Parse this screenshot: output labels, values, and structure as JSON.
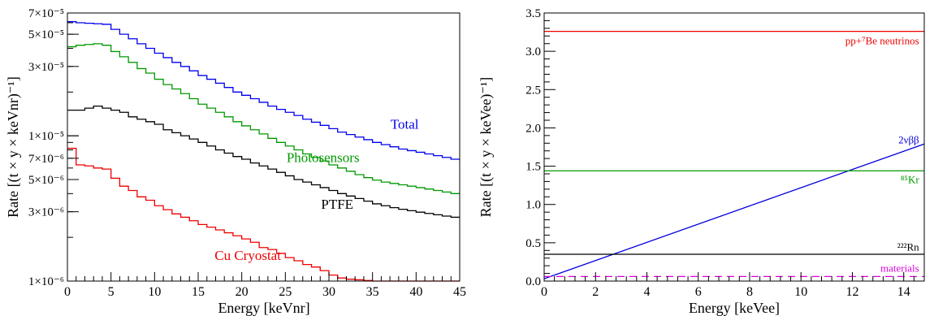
{
  "chart_data": [
    {
      "type": "line",
      "xlabel": "Energy [keVnr]",
      "ylabel": "Rate [(t × y × keVnr)⁻¹]",
      "xlim": [
        0,
        45
      ],
      "ylim": [
        1e-06,
        7e-05
      ],
      "yscale": "log",
      "grid": false,
      "step": true,
      "x_ticks": [
        {
          "value": 0,
          "label": "0"
        },
        {
          "value": 5,
          "label": "5"
        },
        {
          "value": 10,
          "label": "10"
        },
        {
          "value": 15,
          "label": "15"
        },
        {
          "value": 20,
          "label": "20"
        },
        {
          "value": 25,
          "label": "25"
        },
        {
          "value": 30,
          "label": "30"
        },
        {
          "value": 35,
          "label": "35"
        },
        {
          "value": 40,
          "label": "40"
        },
        {
          "value": 45,
          "label": "45"
        }
      ],
      "y_ticks": [
        {
          "value": 1e-06,
          "label": "1×10⁻⁶"
        },
        {
          "value": 3e-06,
          "label": "3×10⁻⁶"
        },
        {
          "value": 5e-06,
          "label": "5×10⁻⁶"
        },
        {
          "value": 7e-06,
          "label": "7×10⁻⁶"
        },
        {
          "value": 1e-05,
          "label": "1×10⁻⁵"
        },
        {
          "value": 3e-05,
          "label": "3×10⁻⁵"
        },
        {
          "value": 5e-05,
          "label": "5×10⁻⁵"
        },
        {
          "value": 7e-05,
          "label": "7×10⁻⁵"
        }
      ],
      "bin_edges": [
        0,
        1,
        2,
        3,
        4,
        5,
        6,
        7,
        8,
        9,
        10,
        11,
        12,
        13,
        14,
        15,
        16,
        17,
        18,
        19,
        20,
        21,
        22,
        23,
        24,
        25,
        26,
        27,
        28,
        29,
        30,
        31,
        32,
        33,
        34,
        35,
        36,
        37,
        38,
        39,
        40,
        41,
        42,
        43,
        44,
        45
      ],
      "series": [
        {
          "name": "Total",
          "color": "#0000ee",
          "label_at": [
            40.3,
            1.12e-05
          ],
          "values": [
            6.1e-05,
            6e-05,
            5.95e-05,
            5.9e-05,
            5.85e-05,
            5.4e-05,
            5e-05,
            4.65e-05,
            4.3e-05,
            4e-05,
            3.7e-05,
            3.45e-05,
            3.2e-05,
            3e-05,
            2.8e-05,
            2.6e-05,
            2.45e-05,
            2.3e-05,
            2.15e-05,
            2e-05,
            1.9e-05,
            1.8e-05,
            1.7e-05,
            1.6e-05,
            1.52e-05,
            1.45e-05,
            1.38e-05,
            1.3e-05,
            1.24e-05,
            1.18e-05,
            1.12e-05,
            1.06e-05,
            1.02e-05,
            9.8e-06,
            9.4e-06,
            9e-06,
            8.7e-06,
            8.4e-06,
            8.1e-06,
            7.9e-06,
            7.7e-06,
            7.5e-06,
            7.3e-06,
            7.1e-06,
            6.9e-06
          ]
        },
        {
          "name": "Photosensors",
          "color": "#009900",
          "label_at": [
            33.5,
            6.6e-06
          ],
          "values": [
            4.1e-05,
            4.2e-05,
            4.25e-05,
            4.3e-05,
            4.2e-05,
            3.8e-05,
            3.5e-05,
            3.2e-05,
            2.9e-05,
            2.7e-05,
            2.45e-05,
            2.25e-05,
            2.1e-05,
            1.95e-05,
            1.8e-05,
            1.65e-05,
            1.55e-05,
            1.45e-05,
            1.35e-05,
            1.25e-05,
            1.17e-05,
            1.1e-05,
            1.03e-05,
            9.6e-06,
            9e-06,
            8.5e-06,
            8e-06,
            7.5e-06,
            7.1e-06,
            6.7e-06,
            6.3e-06,
            6e-06,
            5.7e-06,
            5.4e-06,
            5.15e-06,
            4.95e-06,
            4.8e-06,
            4.7e-06,
            4.6e-06,
            4.5e-06,
            4.4e-06,
            4.3e-06,
            4.2e-06,
            4.1e-06,
            4e-06
          ]
        },
        {
          "name": "PTFE",
          "color": "#000000",
          "label_at": [
            32.8,
            3.15e-06
          ],
          "values": [
            1.5e-05,
            1.5e-05,
            1.55e-05,
            1.6e-05,
            1.55e-05,
            1.5e-05,
            1.45e-05,
            1.35e-05,
            1.3e-05,
            1.25e-05,
            1.2e-05,
            1.1e-05,
            1.05e-05,
            1e-05,
            9.5e-06,
            9e-06,
            8.5e-06,
            8e-06,
            7.6e-06,
            7.2e-06,
            6.9e-06,
            6.5e-06,
            6.2e-06,
            5.9e-06,
            5.6e-06,
            5.3e-06,
            5e-06,
            4.8e-06,
            4.6e-06,
            4.4e-06,
            4.2e-06,
            4e-06,
            3.85e-06,
            3.7e-06,
            3.55e-06,
            3.4e-06,
            3.3e-06,
            3.2e-06,
            3.12e-06,
            3.05e-06,
            2.98e-06,
            2.92e-06,
            2.86e-06,
            2.8e-06,
            2.75e-06
          ]
        },
        {
          "name": "Cu Cryostat",
          "color": "#ee0000",
          "label_at": [
            24.5,
            1.4e-06
          ],
          "values": [
            8.2e-06,
            6.3e-06,
            6.2e-06,
            6e-06,
            5.9e-06,
            5.1e-06,
            4.5e-06,
            4.2e-06,
            3.8e-06,
            3.6e-06,
            3.3e-06,
            3.1e-06,
            2.9e-06,
            2.75e-06,
            2.6e-06,
            2.45e-06,
            2.35e-06,
            2.25e-06,
            2.15e-06,
            2.05e-06,
            1.95e-06,
            1.85e-06,
            1.7e-06,
            1.65e-06,
            1.55e-06,
            1.45e-06,
            1.38e-06,
            1.3e-06,
            1.25e-06,
            1.18e-06,
            1.1e-06,
            1.05e-06,
            1.03e-06,
            1.02e-06,
            1.01e-06,
            1e-06,
            1e-06,
            1e-06,
            1e-06,
            1e-06,
            1e-06,
            1e-06,
            1e-06,
            1e-06,
            1e-06
          ]
        }
      ]
    },
    {
      "type": "line",
      "xlabel": "Energy [keVee]",
      "ylabel": "Rate [(t × y × keVee)⁻¹]",
      "xlim": [
        0,
        14.8
      ],
      "ylim": [
        0,
        3.5
      ],
      "yscale": "linear",
      "grid": false,
      "x_ticks": [
        {
          "value": 0,
          "label": "0"
        },
        {
          "value": 2,
          "label": "2"
        },
        {
          "value": 4,
          "label": "4"
        },
        {
          "value": 6,
          "label": "6"
        },
        {
          "value": 8,
          "label": "8"
        },
        {
          "value": 10,
          "label": "10"
        },
        {
          "value": 12,
          "label": "12"
        },
        {
          "value": 14,
          "label": "14"
        }
      ],
      "y_ticks": [
        {
          "value": 0,
          "label": "0.0"
        },
        {
          "value": 0.5,
          "label": "0.5"
        },
        {
          "value": 1.0,
          "label": "1.0"
        },
        {
          "value": 1.5,
          "label": "1.5"
        },
        {
          "value": 2.0,
          "label": "2.0"
        },
        {
          "value": 2.5,
          "label": "2.5"
        },
        {
          "value": 3.0,
          "label": "3.0"
        },
        {
          "value": 3.5,
          "label": "3.5"
        }
      ],
      "series": [
        {
          "name": "pp+⁷Be neutrinos",
          "color": "#ee0000",
          "dash": "",
          "x": [
            0,
            14.8
          ],
          "y": [
            3.26,
            3.26
          ],
          "label_at": [
            14.6,
            3.09
          ]
        },
        {
          "name": "2νββ",
          "color": "#0000dd",
          "dash": "",
          "x": [
            0,
            14.8
          ],
          "y": [
            0.03,
            1.79
          ],
          "label_at": [
            14.6,
            1.8
          ]
        },
        {
          "name": "⁸⁵Kr",
          "color": "#009900",
          "dash": "",
          "x": [
            0,
            14.8
          ],
          "y": [
            1.44,
            1.44
          ],
          "label_at": [
            14.6,
            1.28
          ]
        },
        {
          "name": "²²²Rn",
          "color": "#000000",
          "dash": "",
          "x": [
            0,
            14.8
          ],
          "y": [
            0.35,
            0.35
          ],
          "label_at": [
            14.6,
            0.4
          ]
        },
        {
          "name": "materials",
          "color": "#dd00dd",
          "dash": "9 6",
          "x": [
            0,
            14.8
          ],
          "y": [
            0.06,
            0.06
          ],
          "label_at": [
            14.6,
            0.12
          ]
        }
      ]
    }
  ]
}
